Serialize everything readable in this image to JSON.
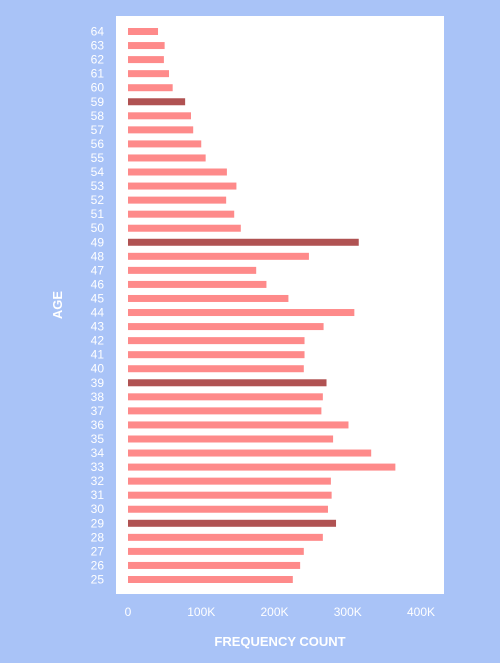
{
  "chart_data": {
    "type": "bar",
    "orientation": "horizontal",
    "xlabel": "FREQUENCY COUNT",
    "ylabel": "AGE",
    "xlim": [
      0,
      400000
    ],
    "x_ticks": [
      "0",
      "100K",
      "200K",
      "300K",
      "400K"
    ],
    "x_tick_values": [
      0,
      100000,
      200000,
      300000,
      400000
    ],
    "grid": false,
    "categories": [
      "25",
      "26",
      "27",
      "28",
      "29",
      "30",
      "31",
      "32",
      "33",
      "34",
      "35",
      "36",
      "37",
      "38",
      "39",
      "40",
      "41",
      "42",
      "43",
      "44",
      "45",
      "46",
      "47",
      "48",
      "49",
      "50",
      "51",
      "52",
      "53",
      "54",
      "55",
      "56",
      "57",
      "58",
      "59",
      "60",
      "61",
      "62",
      "63",
      "64"
    ],
    "values": [
      225000,
      235000,
      240000,
      266000,
      284000,
      273000,
      278000,
      277000,
      365000,
      332000,
      280000,
      301000,
      264000,
      266000,
      271000,
      240000,
      241000,
      241000,
      267000,
      309000,
      219000,
      189000,
      175000,
      247000,
      315000,
      154000,
      145000,
      134000,
      148000,
      135000,
      106000,
      100000,
      89000,
      86000,
      78000,
      61000,
      56000,
      49000,
      50000,
      41000
    ],
    "highlighted": [
      "29",
      "39",
      "49",
      "59"
    ],
    "colors": {
      "bar": "#fe8a8a",
      "bar_highlight": "#b05252",
      "plot_background": "#ffffff",
      "page_background": "#a9c3f7",
      "text": "#ffffff"
    }
  }
}
